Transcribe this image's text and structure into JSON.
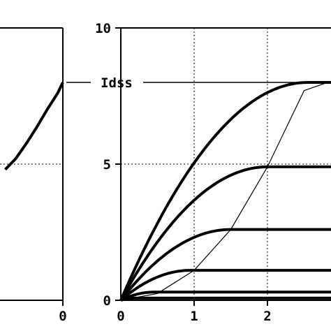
{
  "colors": {
    "line": "#000000",
    "background": "#ffffff"
  },
  "chart_data": [
    {
      "type": "line",
      "panel": "left",
      "description_visible": "transfer characteristic (partial, cropped)",
      "xlabel": "",
      "ylabel": "",
      "x_ticks": [
        "0"
      ],
      "ylim": [
        0,
        10
      ],
      "grid": true,
      "series": [
        {
          "x": [
            -0.55,
            -0.45,
            -0.35,
            -0.25,
            -0.15,
            -0.05,
            0
          ],
          "y": [
            4.8,
            5.2,
            5.75,
            6.35,
            7.0,
            7.6,
            8.0
          ]
        }
      ]
    },
    {
      "type": "line",
      "panel": "right",
      "xlabel": "",
      "ylabel": "",
      "xlim": [
        0,
        2.8
      ],
      "ylim": [
        0,
        10
      ],
      "x_ticks": [
        "0",
        "1",
        "2"
      ],
      "y_ticks": [
        "0",
        "5",
        "10"
      ],
      "grid": true,
      "annotation": "Idss",
      "idss": 8.0,
      "series": [
        {
          "vp": 2.55,
          "isat": 8.0
        },
        {
          "vp": 2.0,
          "isat": 4.9
        },
        {
          "vp": 1.5,
          "isat": 2.6
        },
        {
          "vp": 0.95,
          "isat": 1.1
        },
        {
          "vp": 0.45,
          "isat": 0.3
        },
        {
          "vp": 0.2,
          "isat": 0.08
        }
      ],
      "pinchoff_curve": {
        "x": [
          0,
          0.5,
          1.0,
          1.5,
          2.0,
          2.5,
          2.82
        ],
        "y": [
          0,
          0.25,
          1.1,
          2.6,
          4.9,
          7.7,
          8.0
        ]
      }
    }
  ]
}
